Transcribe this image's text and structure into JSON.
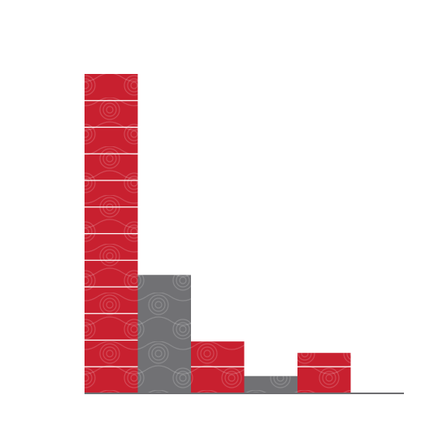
{
  "chart_data": {
    "type": "bar",
    "categories": [
      null,
      null,
      null,
      null,
      null,
      null
    ],
    "values": [
      12,
      4.45,
      1.95,
      0.65,
      1.52,
      0
    ],
    "colors": [
      "#c8202f",
      "#717174",
      "#c8202f",
      "#717174",
      "#c8202f",
      "#717174"
    ],
    "ylim": [
      0,
      12
    ],
    "grid": false
  }
}
